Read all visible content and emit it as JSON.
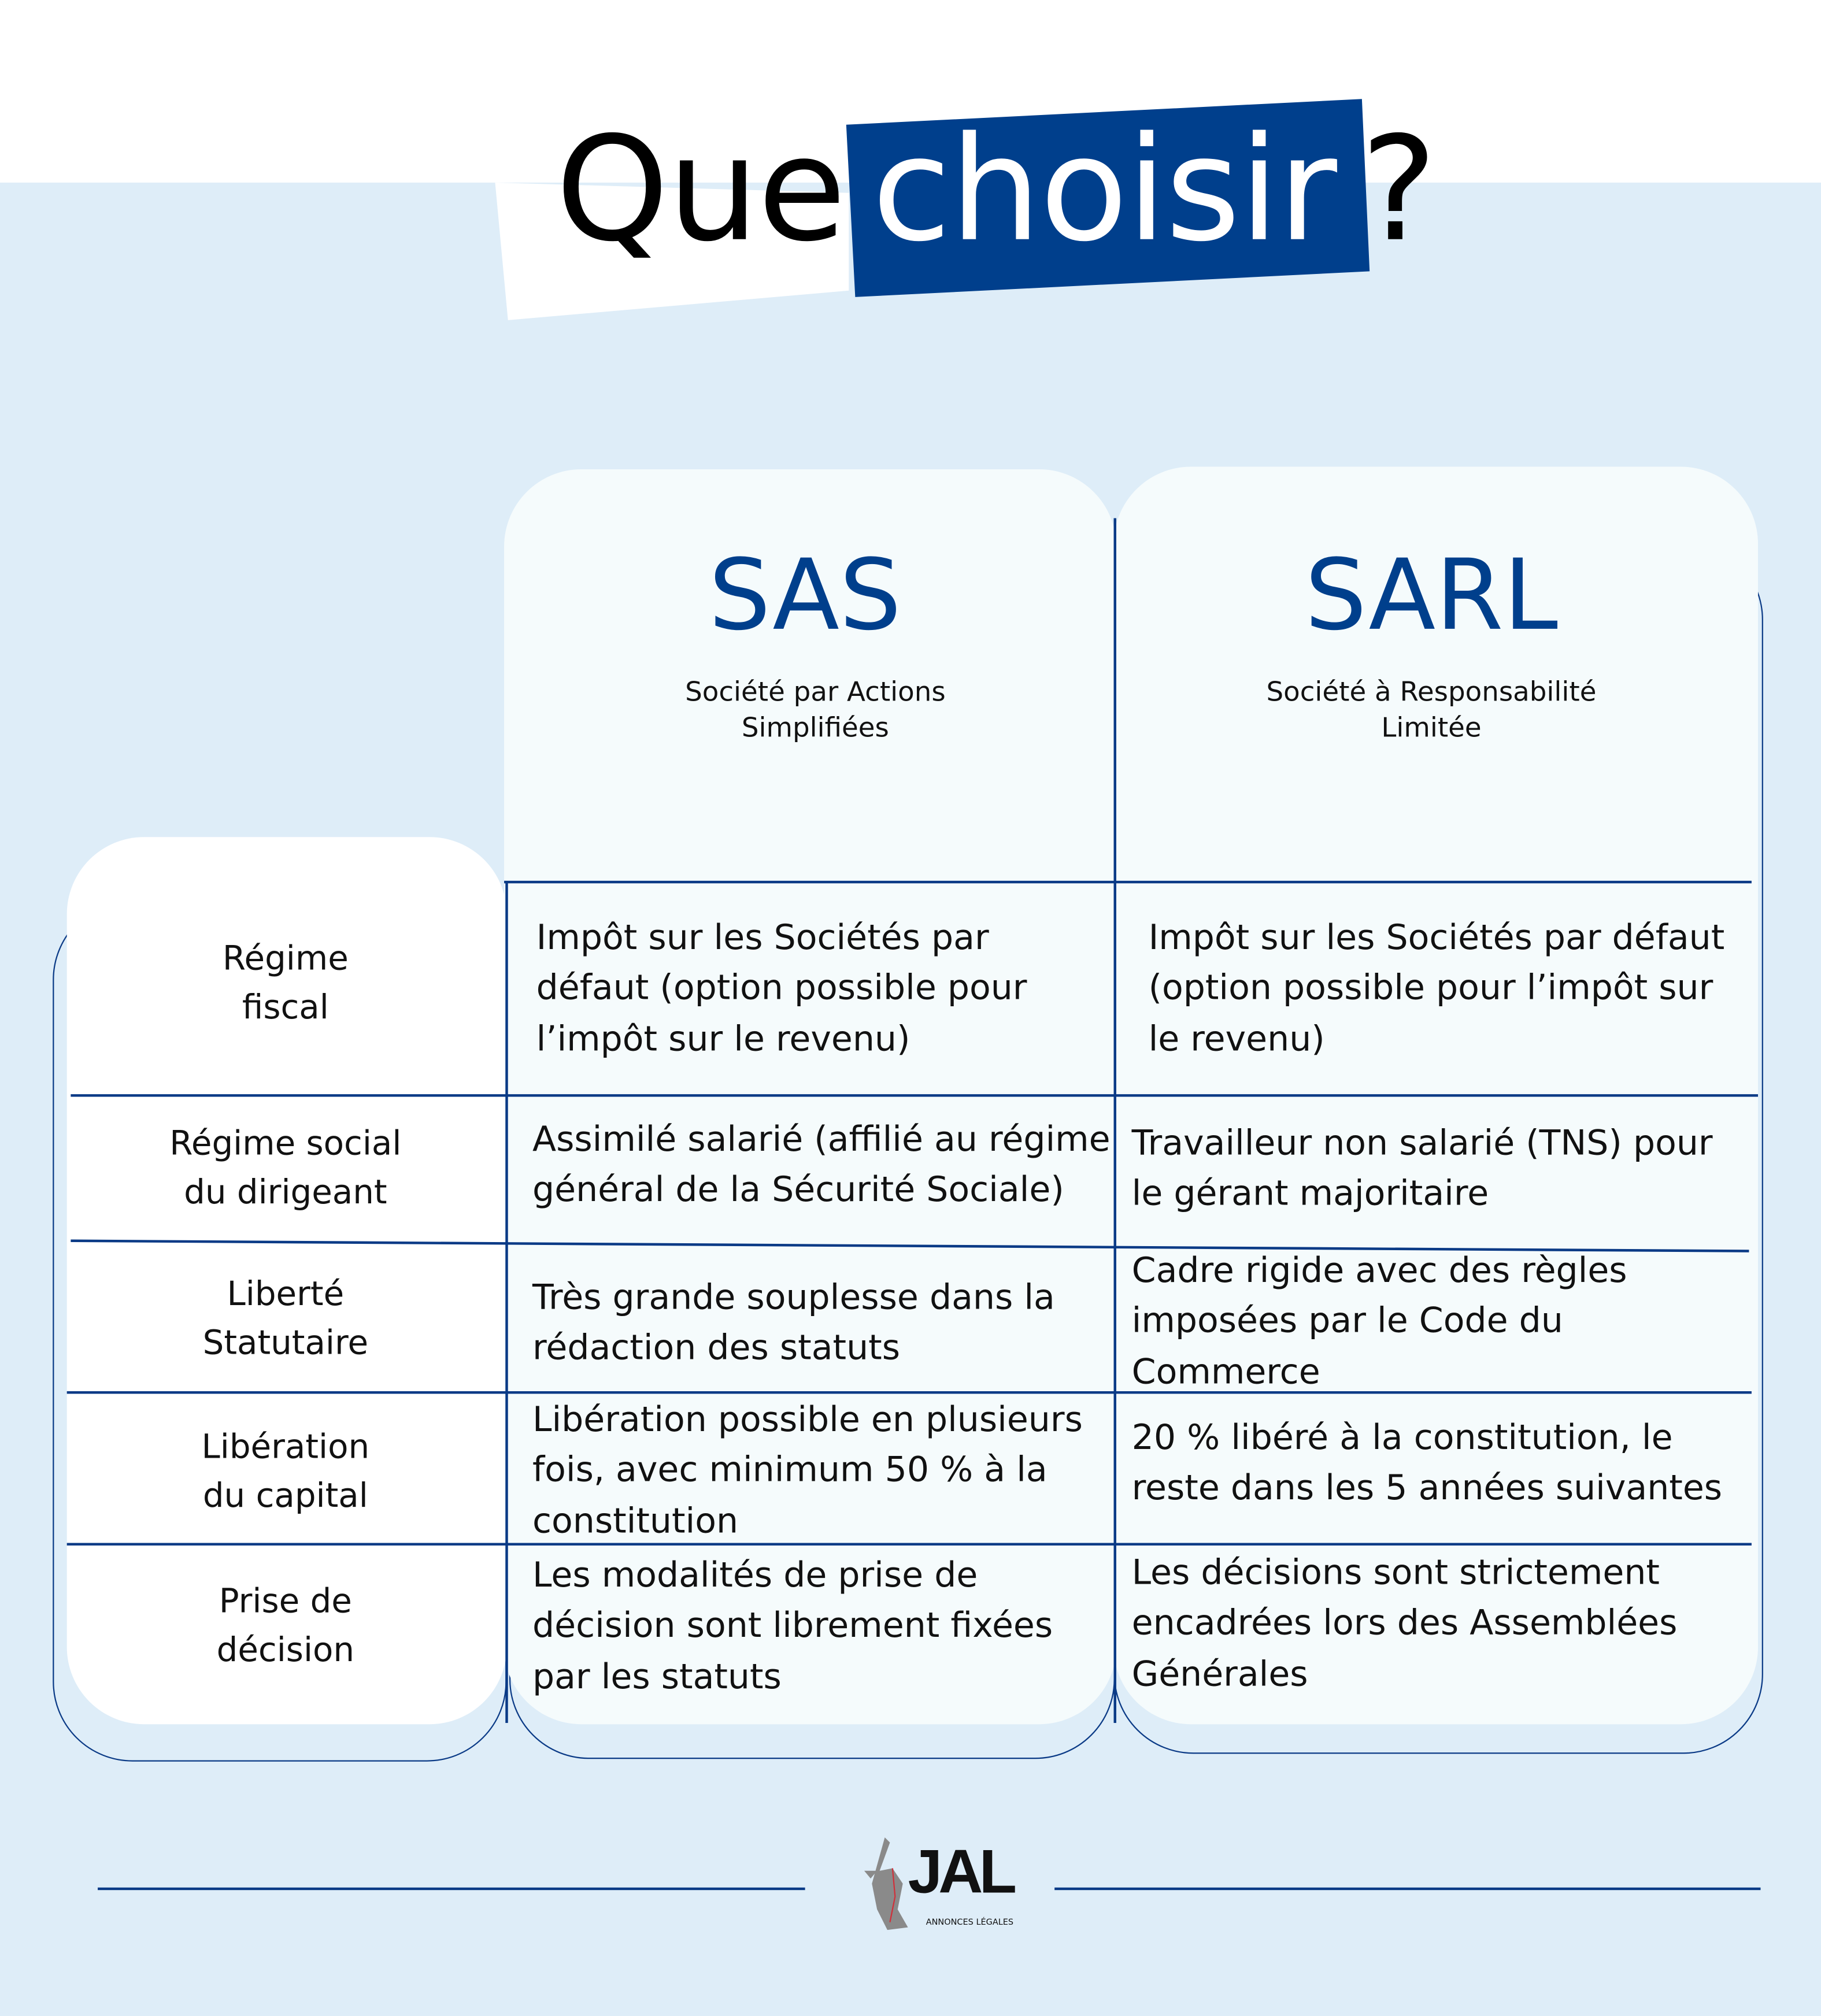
{
  "header": {
    "title_part1": "Que",
    "title_highlight": "choisir",
    "title_part2": "?"
  },
  "colors": {
    "accent": "#003f8c",
    "background": "#deedf8",
    "card": "#f5fbfc"
  },
  "columns": [
    {
      "title": "SAS",
      "subtitle_line1": "Société par Actions",
      "subtitle_line2": "Simplifiées"
    },
    {
      "title": "SARL",
      "subtitle_line1": "Société à Responsabilité",
      "subtitle_line2": "Limitée"
    }
  ],
  "rows": [
    {
      "label": "Régime\nfiscal",
      "sas": "Impôt sur les Sociétés par défaut (option possible pour l’impôt sur le revenu)",
      "sarl": "Impôt sur les Sociétés par défaut (option possible pour l’impôt sur le revenu)"
    },
    {
      "label": "Régime social\ndu dirigeant",
      "sas": "Assimilé salarié (affilié au régime général de la Sécurité Sociale)",
      "sarl": "Travailleur non salarié (TNS) pour le gérant majoritaire"
    },
    {
      "label": "Liberté\nStatutaire",
      "sas": "Très grande souplesse dans la rédaction des statuts",
      "sarl": "Cadre rigide avec des règles imposées par le Code du Commerce"
    },
    {
      "label": "Libération\ndu capital",
      "sas": "Libération possible en plusieurs fois, avec minimum 50 % à la constitution",
      "sarl": "20 % libéré à la constitution, le reste dans les 5 années suivantes"
    },
    {
      "label": "Prise de\ndécision",
      "sas": "Les modalités de prise de décision sont librement fixées par les statuts",
      "sarl": "Les  décisions sont strictement encadrées lors des Assemblées Générales"
    }
  ],
  "footer": {
    "logo_letters": "JAL",
    "logo_tagline": "ANNONCES LÉGALES"
  }
}
